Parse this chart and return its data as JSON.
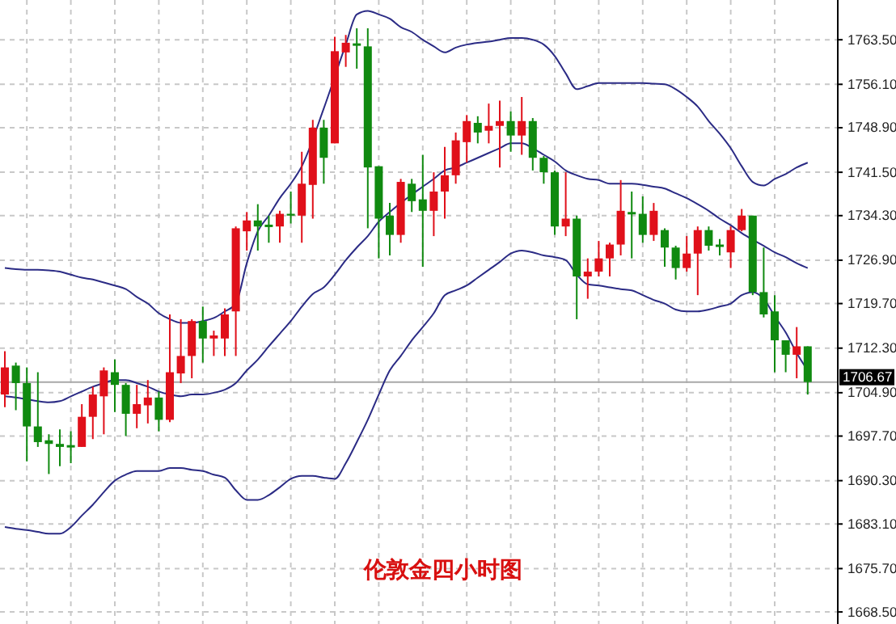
{
  "chart_data": {
    "type": "candlestick",
    "title": "伦敦金四小时图",
    "categories": [
      null,
      null,
      null,
      null,
      null,
      null,
      null,
      null,
      null,
      null,
      null,
      null,
      null,
      null,
      null,
      null,
      null,
      null,
      null,
      null,
      null,
      null,
      null,
      null,
      null,
      null,
      null,
      null,
      null,
      null,
      null,
      null,
      null,
      null,
      null,
      null,
      null,
      null,
      null,
      null,
      null,
      null,
      null,
      null,
      null,
      null,
      null,
      null,
      null,
      null,
      null,
      null,
      null,
      null,
      null,
      null,
      null,
      null,
      null,
      null,
      null,
      null,
      null,
      null,
      null,
      null,
      null,
      null,
      null,
      null,
      null,
      null,
      null,
      null
    ],
    "series": [
      {
        "type": "line",
        "color": "#2b2b85",
        "values": [
          1725.6,
          1725.4,
          1725.3,
          1725.3,
          1725.2,
          1725.0,
          1724.5,
          1724.0,
          1723.7,
          1723.2,
          1722.7,
          1722.1,
          1720.8,
          1719.7,
          1718.1,
          1717.1,
          1716.5,
          1716.5,
          1716.8,
          1717.3,
          1718.4,
          1719.7,
          1726.4,
          1731.7,
          1734.3,
          1737.2,
          1739.6,
          1742.5,
          null,
          1752.1,
          null,
          1762.7,
          1767.7,
          1768.3,
          1767.7,
          1767.0,
          1765.6,
          1764.8,
          1763.5,
          1762.4,
          1761.4,
          1762.2,
          1762.7,
          1763.0,
          1763.2,
          1763.5,
          1763.8,
          1763.8,
          1763.5,
          1762.7,
          1760.8,
          1757.9,
          1755.3,
          1755.8,
          1756.3,
          1756.3,
          1756.3,
          1756.3,
          1756.3,
          1756.2,
          1756.1,
          1755.3,
          1754.0,
          1752.4,
          1750.0,
          1747.9,
          1745.5,
          1742.5,
          1739.9,
          1739.3,
          1740.4,
          1741.2,
          1742.3,
          1743.1
        ]
      },
      {
        "type": "line",
        "color": "#2b2b85",
        "values": [
          1704.3,
          1704.1,
          1703.8,
          1703.5,
          1703.3,
          1703.5,
          1704.3,
          1705.1,
          1705.9,
          1706.5,
          1707.0,
          1707.0,
          1706.5,
          1705.9,
          1705.1,
          1704.6,
          1704.3,
          1704.6,
          1704.6,
          1704.9,
          1705.4,
          1706.5,
          1708.6,
          1710.4,
          1712.6,
          1714.7,
          1716.8,
          1719.2,
          1721.3,
          1722.4,
          1724.5,
          1726.9,
          1729.0,
          1730.9,
          1733.3,
          1734.9,
          1736.4,
          1737.8,
          1739.1,
          1740.4,
          1741.8,
          1742.3,
          1743.1,
          1743.9,
          1744.7,
          1745.5,
          1746.3,
          1746.3,
          1745.5,
          1744.4,
          1743.3,
          1741.8,
          1741.0,
          1740.4,
          1740.2,
          1739.6,
          1739.6,
          1739.6,
          1739.4,
          1739.1,
          1738.8,
          1738.0,
          1737.2,
          1736.2,
          1735.1,
          1733.8,
          1732.7,
          1731.4,
          1730.3,
          1729.3,
          1728.2,
          1727.4,
          1726.4,
          1725.6
        ]
      },
      {
        "type": "line",
        "color": "#2b2b85",
        "values": [
          1682.6,
          1682.3,
          1682.1,
          1681.8,
          1681.5,
          1681.5,
          1682.6,
          1684.5,
          1686.3,
          1688.4,
          1690.3,
          1691.3,
          1691.9,
          1691.9,
          1691.9,
          1692.4,
          1692.4,
          1692.1,
          1691.9,
          1691.3,
          1690.8,
          1688.7,
          1687.1,
          1687.1,
          1687.9,
          1689.2,
          1690.6,
          1691.1,
          1691.1,
          1690.8,
          1690.6,
          1693.2,
          1696.7,
          1700.4,
          1704.6,
          1708.6,
          1711.0,
          1713.6,
          1715.8,
          1718.1,
          1721.1,
          1721.9,
          1722.7,
          1724.0,
          1725.3,
          1726.6,
          1728.0,
          1728.5,
          1728.2,
          1727.7,
          1727.4,
          1726.9,
          1724.5,
          1722.9,
          1722.7,
          1722.4,
          1722.1,
          1721.9,
          1721.1,
          1720.3,
          1719.7,
          1718.7,
          1718.4,
          1718.4,
          1718.7,
          1719.2,
          1719.7,
          1721.1,
          1721.6,
          1720.5,
          1717.6,
          1714.9,
          1711.5,
          1708.6
        ]
      },
      {
        "ohlc": [
          [
            1704.6,
            1711.8,
            1702.5,
            1709.1
          ],
          [
            1709.4,
            1709.9,
            1702.0,
            1706.5
          ],
          [
            1706.5,
            1709.1,
            1693.5,
            1699.3
          ],
          [
            1699.3,
            1708.3,
            1695.9,
            1696.7
          ],
          [
            1697.0,
            1698.0,
            1691.4,
            1696.4
          ],
          [
            1696.4,
            1698.8,
            1692.7,
            1695.9
          ],
          [
            1696.2,
            1698.5,
            1693.2,
            1695.8
          ],
          [
            1695.9,
            1703.0,
            1695.9,
            1700.9
          ],
          [
            1700.9,
            1705.9,
            1697.2,
            1704.6
          ],
          [
            1704.3,
            1709.1,
            1698.0,
            1708.6
          ],
          [
            1708.3,
            1710.4,
            1701.7,
            1706.2
          ],
          [
            1706.2,
            1706.5,
            1697.7,
            1701.4
          ],
          [
            1701.4,
            1706.2,
            1699.0,
            1703.0
          ],
          [
            1702.8,
            1707.0,
            1699.8,
            1704.1
          ],
          [
            1704.1,
            1705.1,
            1698.5,
            1700.4
          ],
          [
            1700.4,
            1717.9,
            1700.0,
            1708.3
          ],
          [
            1708.1,
            1717.1,
            1706.5,
            1711.0
          ],
          [
            1711.0,
            1717.1,
            1707.3,
            1716.8
          ],
          [
            1716.8,
            1719.2,
            1709.9,
            1713.9
          ],
          [
            1713.9,
            1715.2,
            1711.0,
            1714.4
          ],
          [
            1713.9,
            1718.9,
            1711.0,
            1717.9
          ],
          [
            1718.4,
            1732.5,
            1711.0,
            1732.2
          ],
          [
            1731.7,
            1734.9,
            1728.5,
            1733.5
          ],
          [
            1733.5,
            1736.2,
            1728.5,
            1732.5
          ],
          [
            1732.8,
            1734.3,
            1729.8,
            1732.4
          ],
          [
            1732.5,
            1735.1,
            1729.8,
            1734.6
          ],
          [
            1734.6,
            1738.3,
            1733.0,
            1734.3
          ],
          [
            1734.3,
            1744.9,
            1729.8,
            1739.6
          ],
          [
            1739.4,
            1750.2,
            1733.8,
            1748.9
          ],
          [
            1748.9,
            1750.2,
            1739.6,
            1743.9
          ],
          [
            1746.3,
            1764.0,
            1746.3,
            1761.6
          ],
          [
            1761.4,
            1764.3,
            1759.0,
            1763.0
          ],
          [
            1762.9,
            1765.4,
            1758.7,
            1762.5
          ],
          [
            1762.4,
            1765.4,
            1732.2,
            1742.3
          ],
          [
            1742.5,
            1742.5,
            1727.2,
            1733.8
          ],
          [
            1734.3,
            1736.4,
            1727.7,
            1731.1
          ],
          [
            1731.1,
            1740.4,
            1729.8,
            1739.9
          ],
          [
            1739.6,
            1740.4,
            1734.9,
            1736.7
          ],
          [
            1737.0,
            1744.4,
            1725.8,
            1735.1
          ],
          [
            1735.1,
            1741.5,
            1730.9,
            1738.3
          ],
          [
            1738.3,
            1745.7,
            1733.8,
            1741.0
          ],
          [
            1741.0,
            1748.1,
            1739.6,
            1746.8
          ],
          [
            1746.5,
            1751.0,
            1743.1,
            1750.0
          ],
          [
            1749.7,
            1750.8,
            1746.3,
            1748.1
          ],
          [
            1748.4,
            1752.9,
            1746.3,
            1749.2
          ],
          [
            1749.2,
            1753.4,
            1742.3,
            1750.0
          ],
          [
            1750.0,
            1751.6,
            1744.9,
            1747.6
          ],
          [
            1747.6,
            1754.0,
            1744.4,
            1750.0
          ],
          [
            1750.0,
            1750.5,
            1741.8,
            1743.9
          ],
          [
            1743.9,
            1744.2,
            1739.6,
            1741.5
          ],
          [
            1741.5,
            1741.8,
            1731.1,
            1732.5
          ],
          [
            1732.5,
            1741.5,
            1730.9,
            1733.8
          ],
          [
            1733.8,
            1734.3,
            1717.1,
            1724.2
          ],
          [
            1724.2,
            1727.2,
            1720.5,
            1725.0
          ],
          [
            1725.0,
            1730.1,
            1724.2,
            1727.2
          ],
          [
            1727.2,
            1729.8,
            1724.2,
            1729.5
          ],
          [
            1729.5,
            1740.2,
            1727.7,
            1735.1
          ],
          [
            1734.9,
            1738.3,
            1727.2,
            1734.5
          ],
          [
            1734.6,
            1737.5,
            1729.8,
            1731.1
          ],
          [
            1731.1,
            1736.4,
            1730.1,
            1735.1
          ],
          [
            1731.9,
            1732.2,
            1725.8,
            1729.0
          ],
          [
            1729.0,
            1729.3,
            1723.7,
            1725.6
          ],
          [
            1725.6,
            1730.9,
            1725.0,
            1728.0
          ],
          [
            1728.0,
            1732.5,
            1721.1,
            1731.9
          ],
          [
            1731.9,
            1732.5,
            1728.5,
            1729.3
          ],
          [
            1729.5,
            1730.4,
            1727.7,
            1729.1
          ],
          [
            1728.2,
            1732.5,
            1725.6,
            1731.9
          ],
          [
            1731.9,
            1735.4,
            1731.7,
            1734.3
          ],
          [
            1734.3,
            1734.3,
            1721.1,
            1721.6
          ],
          [
            1721.6,
            1729.0,
            1717.4,
            1717.9
          ],
          [
            1718.4,
            1721.1,
            1708.3,
            1713.6
          ],
          [
            1713.6,
            1713.6,
            1708.3,
            1711.2
          ],
          [
            1711.2,
            1715.8,
            1707.3,
            1712.6
          ],
          [
            1712.6,
            1712.6,
            1704.6,
            1706.67
          ]
        ],
        "colors": [
          "#e0101a",
          "#108a10",
          "#108a10",
          "#108a10",
          "#108a10",
          "#108a10",
          "#108a10",
          "#e0101a",
          "#e0101a",
          "#e0101a",
          "#108a10",
          "#108a10",
          "#e0101a",
          "#e0101a",
          "#108a10",
          "#e0101a",
          "#e0101a",
          "#e0101a",
          "#108a10",
          "#e0101a",
          "#e0101a",
          "#e0101a",
          "#e0101a",
          "#108a10",
          "#108a10",
          "#e0101a",
          "#108a10",
          "#e0101a",
          "#e0101a",
          "#108a10",
          "#e0101a",
          "#e0101a",
          "#108a10",
          "#108a10",
          "#108a10",
          "#108a10",
          "#e0101a",
          "#108a10",
          "#108a10",
          "#e0101a",
          "#e0101a",
          "#e0101a",
          "#e0101a",
          "#108a10",
          "#e0101a",
          "#e0101a",
          "#108a10",
          "#e0101a",
          "#108a10",
          "#108a10",
          "#108a10",
          "#e0101a",
          "#108a10",
          "#e0101a",
          "#e0101a",
          "#e0101a",
          "#e0101a",
          "#108a10",
          "#108a10",
          "#e0101a",
          "#108a10",
          "#108a10",
          "#e0101a",
          "#e0101a",
          "#108a10",
          "#108a10",
          "#e0101a",
          "#e0101a",
          "#108a10",
          "#108a10",
          "#108a10",
          "#108a10",
          "#e0101a",
          "#108a10"
        ]
      }
    ],
    "ylim": [
      1666.5,
      1770.1
    ],
    "yticks": [
      {
        "value": 1668.5,
        "label": "1668.50"
      },
      {
        "value": 1675.7,
        "label": "1675.70"
      },
      {
        "value": 1683.1,
        "label": "1683.10"
      },
      {
        "value": 1690.3,
        "label": "1690.30"
      },
      {
        "value": 1697.7,
        "label": "1697.70"
      },
      {
        "value": 1704.9,
        "label": "1704.90"
      },
      {
        "value": 1712.3,
        "label": "1712.30"
      },
      {
        "value": 1719.7,
        "label": "1719.70"
      },
      {
        "value": 1726.9,
        "label": "1726.90"
      },
      {
        "value": 1734.3,
        "label": "1734.30"
      },
      {
        "value": 1741.5,
        "label": "1741.50"
      },
      {
        "value": 1748.9,
        "label": "1748.90"
      },
      {
        "value": 1756.1,
        "label": "1756.10"
      },
      {
        "value": 1763.5,
        "label": "1763.50"
      }
    ],
    "grid": true,
    "ref_lines": [
      {
        "axis": "y",
        "value": 1706.67,
        "label": "1706.67",
        "color": "#a8a8a8"
      }
    ]
  }
}
